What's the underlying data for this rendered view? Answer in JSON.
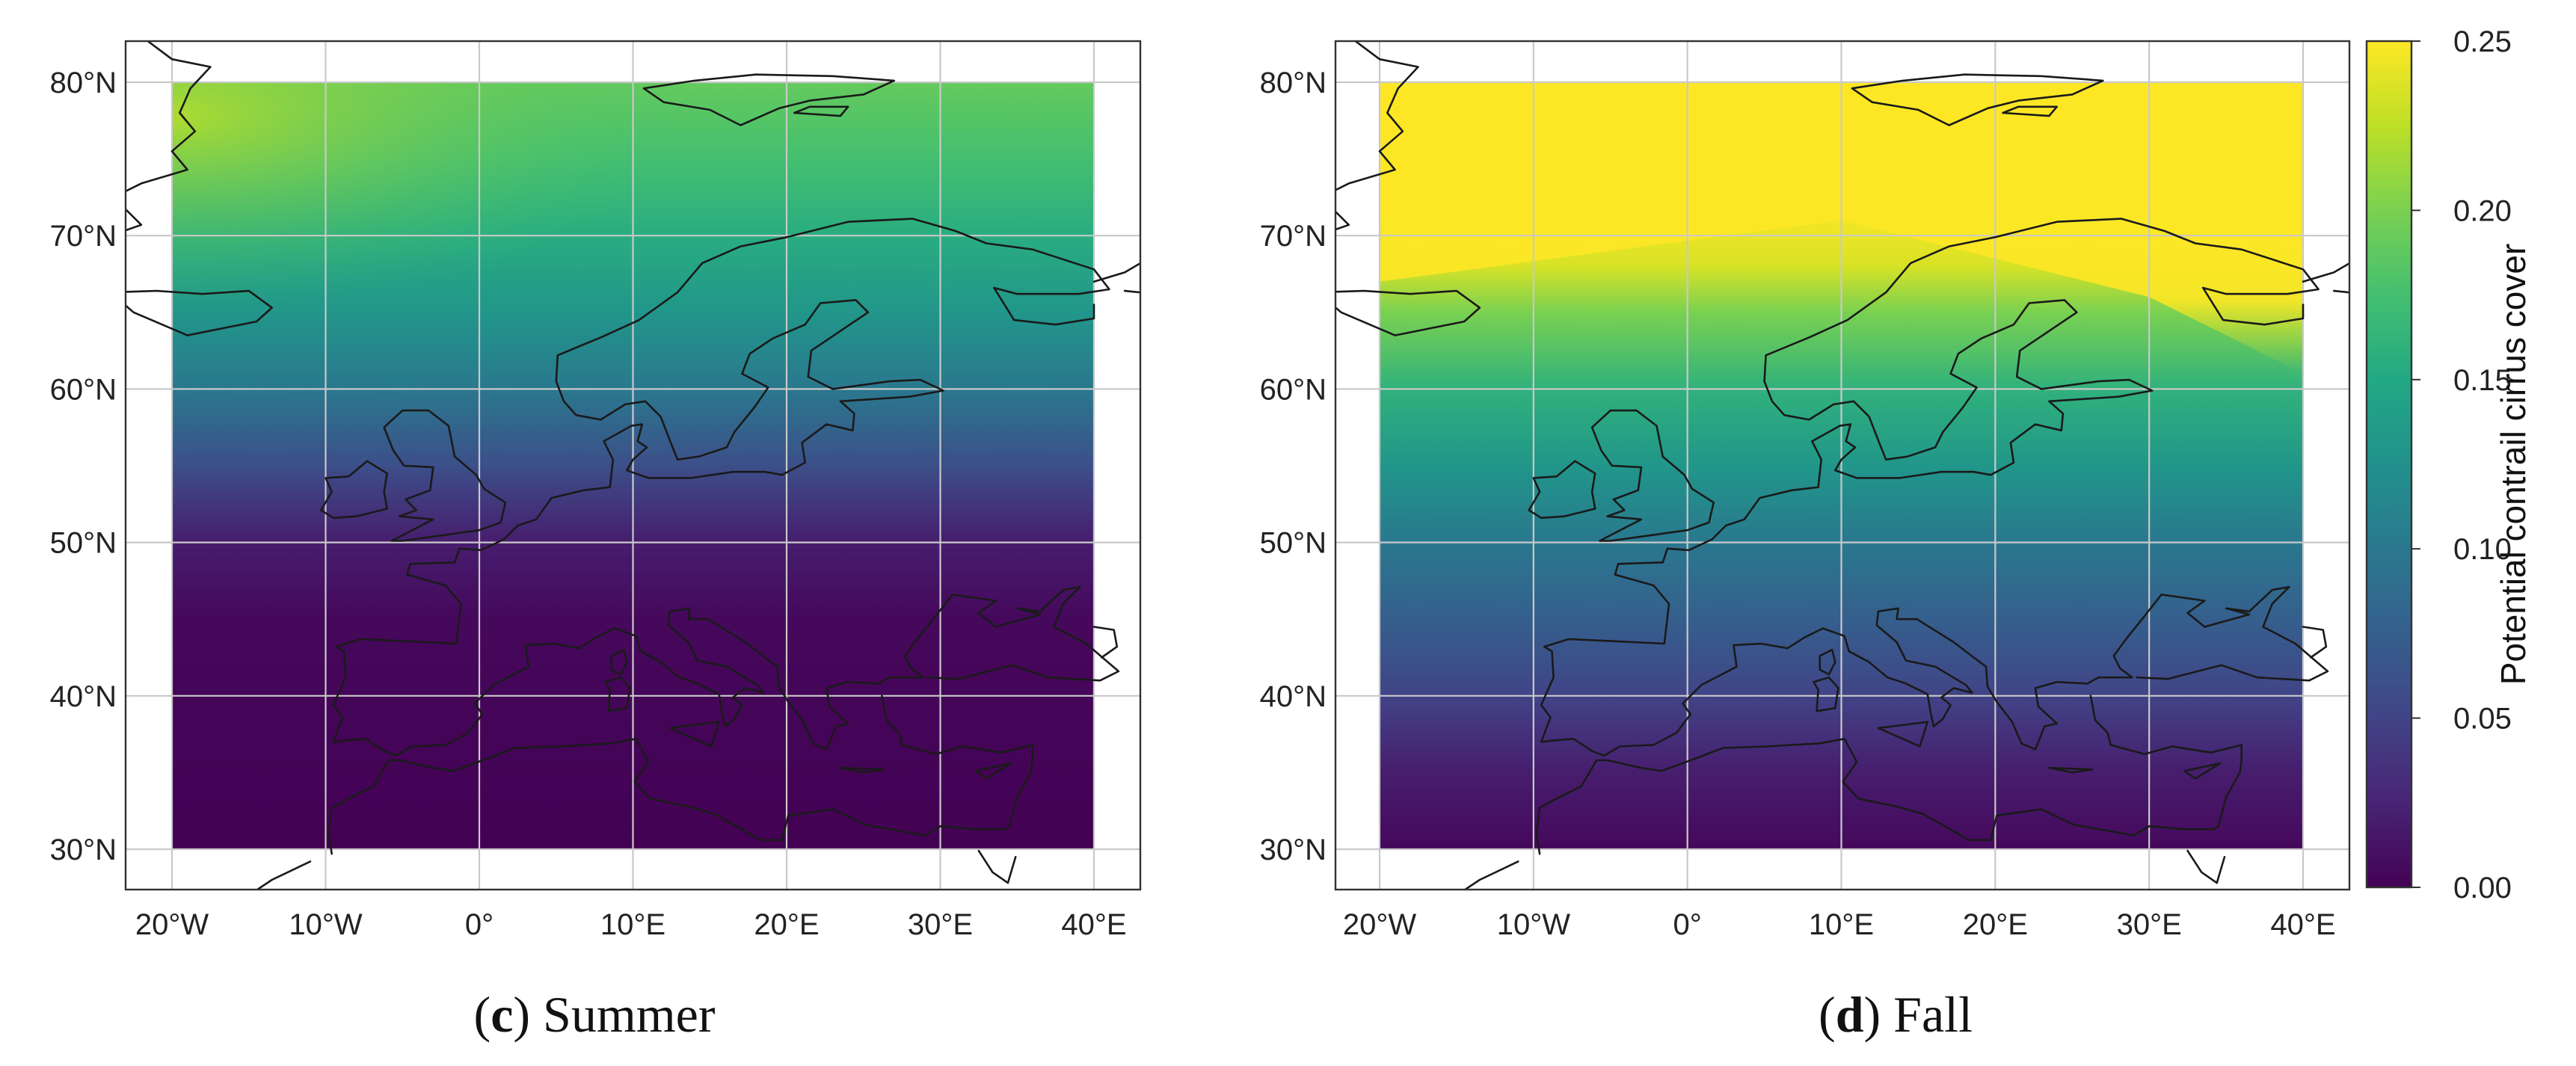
{
  "panels": [
    {
      "id": "c",
      "caption_letter": "c",
      "caption_text": "Summer",
      "lon_range": [
        -20,
        40
      ],
      "lat_range": [
        30,
        80
      ],
      "field": {
        "description_bands_by_latitude": true,
        "lat_profile": [
          {
            "lat": 30,
            "value": 0.0
          },
          {
            "lat": 45,
            "value": 0.005
          },
          {
            "lat": 50,
            "value": 0.02
          },
          {
            "lat": 55,
            "value": 0.06
          },
          {
            "lat": 60,
            "value": 0.1
          },
          {
            "lat": 65,
            "value": 0.13
          },
          {
            "lat": 70,
            "value": 0.155
          },
          {
            "lat": 75,
            "value": 0.175
          },
          {
            "lat": 80,
            "value": 0.19
          }
        ],
        "west_boost": 0.04
      }
    },
    {
      "id": "d",
      "caption_letter": "d",
      "caption_text": "Fall",
      "lon_range": [
        -20,
        40
      ],
      "lat_range": [
        30,
        80
      ],
      "field": {
        "lat_profile": [
          {
            "lat": 30,
            "value": 0.005
          },
          {
            "lat": 35,
            "value": 0.02
          },
          {
            "lat": 40,
            "value": 0.05
          },
          {
            "lat": 45,
            "value": 0.075
          },
          {
            "lat": 50,
            "value": 0.1
          },
          {
            "lat": 55,
            "value": 0.13
          },
          {
            "lat": 60,
            "value": 0.16
          },
          {
            "lat": 65,
            "value": 0.2
          },
          {
            "lat": 68,
            "value": 0.235
          },
          {
            "lat": 72,
            "value": 0.25
          },
          {
            "lat": 80,
            "value": 0.25
          }
        ],
        "west_boost": 0.0
      }
    }
  ],
  "x_ticks": [
    "20°W",
    "10°W",
    "0°",
    "10°E",
    "20°E",
    "30°E",
    "40°E"
  ],
  "x_tick_values": [
    -20,
    -10,
    0,
    10,
    20,
    30,
    40
  ],
  "y_ticks": [
    "30°N",
    "40°N",
    "50°N",
    "60°N",
    "70°N",
    "80°N"
  ],
  "y_tick_values": [
    30,
    40,
    50,
    60,
    70,
    80
  ],
  "colorbar": {
    "label": "Potential contrail cirrus cover",
    "ticks": [
      "0.00",
      "0.05",
      "0.10",
      "0.15",
      "0.20",
      "0.25"
    ],
    "tick_values": [
      0.0,
      0.05,
      0.1,
      0.15,
      0.2,
      0.25
    ],
    "range": [
      0.0,
      0.25
    ],
    "colormap": "viridis"
  },
  "colors": {
    "viridis": [
      "#440154",
      "#482475",
      "#414487",
      "#355f8d",
      "#2a788e",
      "#21918c",
      "#22a884",
      "#44bf70",
      "#7ad151",
      "#bddf26",
      "#fde725"
    ]
  }
}
